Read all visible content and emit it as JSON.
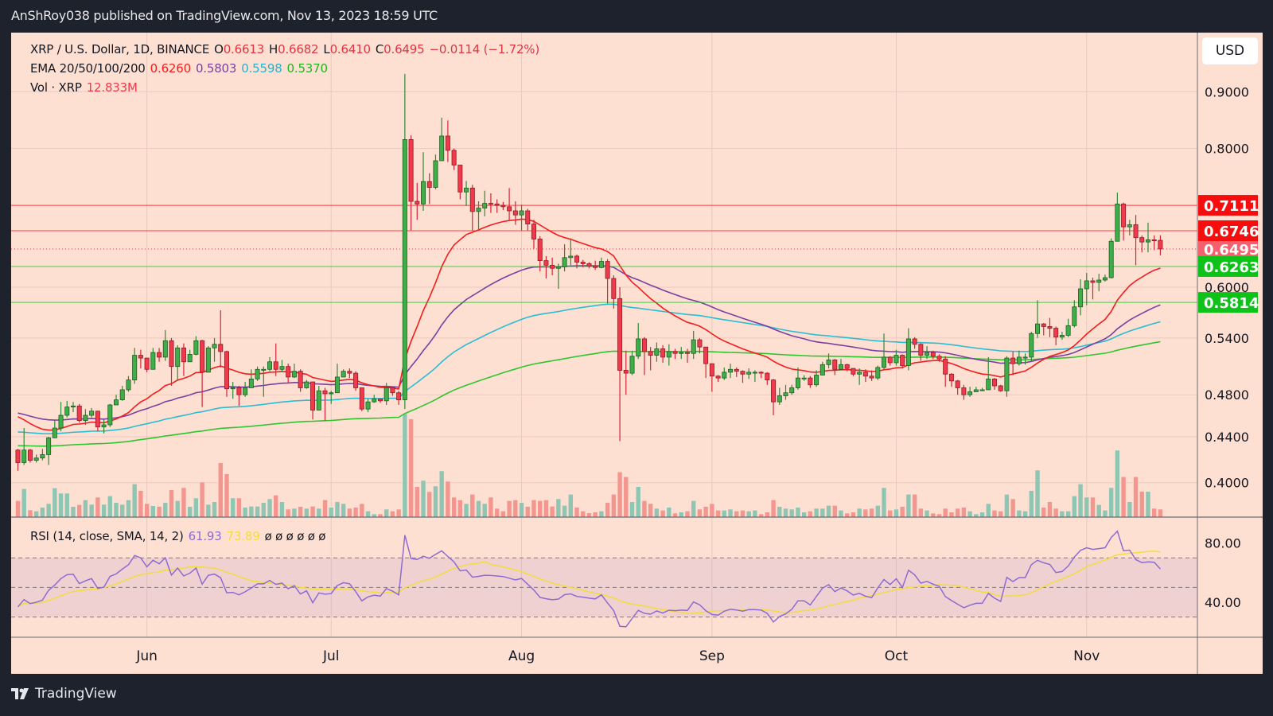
{
  "header": {
    "published": "AnShRoy038 published on TradingView.com, Nov 13, 2023 18:59 UTC"
  },
  "legend": {
    "symbol": "XRP / U.S. Dollar, 1D, BINANCE",
    "open_label": "O",
    "open": "0.6613",
    "high_label": "H",
    "high": "0.6682",
    "low_label": "L",
    "low": "0.6410",
    "close_label": "C",
    "close": "0.6495",
    "change": "−0.0114 (−1.72%)",
    "ema_title": "EMA 20/50/100/200",
    "ema_values": [
      "0.6260",
      "0.5803",
      "0.5598",
      "0.5370"
    ],
    "vol_title": "Vol · XRP",
    "vol_value": "12.833M",
    "rsi_title": "RSI (14, close, SMA, 14, 2)",
    "rsi_value": "61.93",
    "rsi_ma_value": "73.89",
    "rsi_extra": "ø ø ø ø ø ø"
  },
  "currency_button": "USD",
  "footer": {
    "brand": "TradingView"
  },
  "colors": {
    "background": "#fee0d3",
    "up": "#3fae49",
    "down": "#f0394a",
    "vol_up": "#8fc5b3",
    "vol_down": "#f3968f",
    "ema20": "#f21d1d",
    "ema50": "#7b3fa0",
    "ema100": "#2bbcd4",
    "ema200": "#2fc52f",
    "rsi": "#8e6bd0",
    "rsi_ma": "#f3dc3c"
  },
  "chart_data": {
    "type": "candlestick",
    "symbol": "XRPUSD",
    "exchange": "BINANCE",
    "interval": "1D",
    "first_date": "2023-05-11",
    "price_axis": {
      "scale": "log",
      "currency": "USD",
      "ticks": [
        "0.9000",
        "0.8000",
        "0.6000",
        "0.5400",
        "0.4800",
        "0.4400",
        "0.4000"
      ]
    },
    "time_labels": [
      {
        "label": "Jun",
        "date": "2023-06-01"
      },
      {
        "label": "Jul",
        "date": "2023-07-01"
      },
      {
        "label": "Aug",
        "date": "2023-08-01"
      },
      {
        "label": "Sep",
        "date": "2023-09-01"
      },
      {
        "label": "Oct",
        "date": "2023-10-01"
      },
      {
        "label": "Nov",
        "date": "2023-11-01"
      }
    ],
    "grid": true,
    "candles": {
      "columns": [
        "high",
        "low",
        "close",
        "volume_M"
      ],
      "first_open": 0.428,
      "rows": [
        [
          0.429,
          0.41,
          0.417,
          26.5
        ],
        [
          0.448,
          0.415,
          0.428,
          45.8
        ],
        [
          0.429,
          0.417,
          0.419,
          11.6
        ],
        [
          0.424,
          0.417,
          0.421,
          9.8
        ],
        [
          0.429,
          0.419,
          0.424,
          15.8
        ],
        [
          0.44,
          0.415,
          0.439,
          21.8
        ],
        [
          0.455,
          0.442,
          0.448,
          47.1
        ],
        [
          0.473,
          0.445,
          0.46,
          38.5
        ],
        [
          0.474,
          0.458,
          0.468,
          38.5
        ],
        [
          0.473,
          0.463,
          0.469,
          17.1
        ],
        [
          0.471,
          0.453,
          0.455,
          20.1
        ],
        [
          0.466,
          0.451,
          0.46,
          27.8
        ],
        [
          0.467,
          0.458,
          0.464,
          20.5
        ],
        [
          0.464,
          0.445,
          0.449,
          32.1
        ],
        [
          0.456,
          0.443,
          0.451,
          20.5
        ],
        [
          0.471,
          0.449,
          0.47,
          34.2
        ],
        [
          0.48,
          0.47,
          0.475,
          23.5
        ],
        [
          0.489,
          0.474,
          0.485,
          20.5
        ],
        [
          0.499,
          0.483,
          0.495,
          27.8
        ],
        [
          0.529,
          0.491,
          0.521,
          53.5
        ],
        [
          0.527,
          0.507,
          0.518,
          42.8
        ],
        [
          0.518,
          0.503,
          0.506,
          21.8
        ],
        [
          0.529,
          0.506,
          0.524,
          18.4
        ],
        [
          0.529,
          0.514,
          0.519,
          17.1
        ],
        [
          0.549,
          0.515,
          0.537,
          23.5
        ],
        [
          0.54,
          0.489,
          0.509,
          44.1
        ],
        [
          0.532,
          0.494,
          0.529,
          26.5
        ],
        [
          0.534,
          0.499,
          0.514,
          47.5
        ],
        [
          0.527,
          0.517,
          0.522,
          17.1
        ],
        [
          0.542,
          0.521,
          0.537,
          30.8
        ],
        [
          0.538,
          0.468,
          0.503,
          56.5
        ],
        [
          0.531,
          0.503,
          0.529,
          20.5
        ],
        [
          0.54,
          0.514,
          0.533,
          24.8
        ],
        [
          0.572,
          0.508,
          0.525,
          87.7
        ],
        [
          0.526,
          0.478,
          0.486,
          69.8
        ],
        [
          0.493,
          0.476,
          0.487,
          30.8
        ],
        [
          0.489,
          0.469,
          0.48,
          30.8
        ],
        [
          0.493,
          0.478,
          0.487,
          15.8
        ],
        [
          0.506,
          0.487,
          0.496,
          17.5
        ],
        [
          0.509,
          0.494,
          0.506,
          17.5
        ],
        [
          0.509,
          0.478,
          0.506,
          23.5
        ],
        [
          0.519,
          0.504,
          0.514,
          29.5
        ],
        [
          0.534,
          0.499,
          0.506,
          35.5
        ],
        [
          0.516,
          0.503,
          0.509,
          24.8
        ],
        [
          0.512,
          0.492,
          0.498,
          12.8
        ],
        [
          0.512,
          0.497,
          0.504,
          14.1
        ],
        [
          0.506,
          0.483,
          0.487,
          17.1
        ],
        [
          0.495,
          0.486,
          0.493,
          14.1
        ],
        [
          0.492,
          0.456,
          0.465,
          17.5
        ],
        [
          0.489,
          0.465,
          0.484,
          14.1
        ],
        [
          0.487,
          0.455,
          0.481,
          27.8
        ],
        [
          0.484,
          0.471,
          0.482,
          15.8
        ],
        [
          0.512,
          0.484,
          0.498,
          24.8
        ],
        [
          0.506,
          0.498,
          0.504,
          21.8
        ],
        [
          0.507,
          0.497,
          0.502,
          14.1
        ],
        [
          0.504,
          0.484,
          0.487,
          15.8
        ],
        [
          0.487,
          0.464,
          0.466,
          21.8
        ],
        [
          0.476,
          0.463,
          0.473,
          9.8
        ],
        [
          0.48,
          0.472,
          0.476,
          5.1
        ],
        [
          0.476,
          0.472,
          0.474,
          5.1
        ],
        [
          0.492,
          0.47,
          0.487,
          12.8
        ],
        [
          0.487,
          0.479,
          0.482,
          9.8
        ],
        [
          0.484,
          0.47,
          0.475,
          12.8
        ],
        [
          0.934,
          0.466,
          0.815,
          166.9
        ],
        [
          0.822,
          0.675,
          0.717,
          158.4
        ],
        [
          0.745,
          0.69,
          0.713,
          49.2
        ],
        [
          0.794,
          0.703,
          0.747,
          59.1
        ],
        [
          0.76,
          0.713,
          0.738,
          41.1
        ],
        [
          0.79,
          0.735,
          0.78,
          50.1
        ],
        [
          0.853,
          0.78,
          0.821,
          74.5
        ],
        [
          0.848,
          0.778,
          0.797,
          57.8
        ],
        [
          0.8,
          0.765,
          0.773,
          32.1
        ],
        [
          0.76,
          0.72,
          0.731,
          27.8
        ],
        [
          0.748,
          0.71,
          0.737,
          21.8
        ],
        [
          0.742,
          0.675,
          0.702,
          36.8
        ],
        [
          0.717,
          0.675,
          0.707,
          26.5
        ],
        [
          0.733,
          0.695,
          0.714,
          21.8
        ],
        [
          0.729,
          0.7,
          0.713,
          32.1
        ],
        [
          0.72,
          0.7,
          0.711,
          14.1
        ],
        [
          0.716,
          0.704,
          0.709,
          9.8
        ],
        [
          0.737,
          0.69,
          0.703,
          26.5
        ],
        [
          0.717,
          0.683,
          0.697,
          27.8
        ],
        [
          0.712,
          0.675,
          0.703,
          23.5
        ],
        [
          0.706,
          0.675,
          0.684,
          17.1
        ],
        [
          0.69,
          0.65,
          0.663,
          27.8
        ],
        [
          0.667,
          0.62,
          0.634,
          26.5
        ],
        [
          0.64,
          0.611,
          0.628,
          27.8
        ],
        [
          0.638,
          0.615,
          0.624,
          17.5
        ],
        [
          0.63,
          0.598,
          0.626,
          29.5
        ],
        [
          0.656,
          0.62,
          0.638,
          18.8
        ],
        [
          0.664,
          0.628,
          0.64,
          36.8
        ],
        [
          0.642,
          0.624,
          0.632,
          15.8
        ],
        [
          0.635,
          0.625,
          0.63,
          9.8
        ],
        [
          0.632,
          0.624,
          0.627,
          6.8
        ],
        [
          0.634,
          0.622,
          0.625,
          8.1
        ],
        [
          0.638,
          0.624,
          0.633,
          9.8
        ],
        [
          0.636,
          0.58,
          0.611,
          23.5
        ],
        [
          0.615,
          0.574,
          0.586,
          36.8
        ],
        [
          0.6,
          0.436,
          0.505,
          72.8
        ],
        [
          0.526,
          0.48,
          0.502,
          65.1
        ],
        [
          0.526,
          0.5,
          0.52,
          24.8
        ],
        [
          0.557,
          0.517,
          0.539,
          49.2
        ],
        [
          0.541,
          0.5,
          0.525,
          26.5
        ],
        [
          0.53,
          0.505,
          0.521,
          21.8
        ],
        [
          0.535,
          0.514,
          0.528,
          14.1
        ],
        [
          0.532,
          0.513,
          0.519,
          11.1
        ],
        [
          0.533,
          0.51,
          0.525,
          15.8
        ],
        [
          0.528,
          0.517,
          0.523,
          6.4
        ],
        [
          0.53,
          0.517,
          0.524,
          8.1
        ],
        [
          0.528,
          0.513,
          0.523,
          9.8
        ],
        [
          0.548,
          0.517,
          0.538,
          26.5
        ],
        [
          0.54,
          0.523,
          0.53,
          12.8
        ],
        [
          0.53,
          0.497,
          0.512,
          17.1
        ],
        [
          0.51,
          0.483,
          0.499,
          21.8
        ],
        [
          0.5,
          0.493,
          0.497,
          11.1
        ],
        [
          0.508,
          0.495,
          0.503,
          11.1
        ],
        [
          0.512,
          0.497,
          0.506,
          12.8
        ],
        [
          0.508,
          0.498,
          0.504,
          9.8
        ],
        [
          0.505,
          0.492,
          0.501,
          11.1
        ],
        [
          0.507,
          0.496,
          0.503,
          9.8
        ],
        [
          0.505,
          0.493,
          0.503,
          11.1
        ],
        [
          0.504,
          0.497,
          0.502,
          5.1
        ],
        [
          0.503,
          0.49,
          0.495,
          8.1
        ],
        [
          0.496,
          0.46,
          0.473,
          27.8
        ],
        [
          0.487,
          0.47,
          0.479,
          17.1
        ],
        [
          0.49,
          0.475,
          0.482,
          14.1
        ],
        [
          0.49,
          0.48,
          0.487,
          12.8
        ],
        [
          0.508,
          0.485,
          0.497,
          15.8
        ],
        [
          0.5,
          0.494,
          0.497,
          8.1
        ],
        [
          0.499,
          0.487,
          0.49,
          9.8
        ],
        [
          0.505,
          0.488,
          0.5,
          14.1
        ],
        [
          0.514,
          0.5,
          0.511,
          14.1
        ],
        [
          0.523,
          0.507,
          0.516,
          18.8
        ],
        [
          0.517,
          0.5,
          0.506,
          18.8
        ],
        [
          0.517,
          0.505,
          0.511,
          11.1
        ],
        [
          0.512,
          0.504,
          0.507,
          6.4
        ],
        [
          0.507,
          0.499,
          0.501,
          8.1
        ],
        [
          0.507,
          0.49,
          0.503,
          14.1
        ],
        [
          0.506,
          0.493,
          0.499,
          12.8
        ],
        [
          0.505,
          0.494,
          0.497,
          14.1
        ],
        [
          0.51,
          0.495,
          0.508,
          18.8
        ],
        [
          0.545,
          0.506,
          0.519,
          47.5
        ],
        [
          0.52,
          0.51,
          0.513,
          11.1
        ],
        [
          0.527,
          0.51,
          0.521,
          12.8
        ],
        [
          0.522,
          0.507,
          0.51,
          17.1
        ],
        [
          0.551,
          0.505,
          0.539,
          36.8
        ],
        [
          0.541,
          0.528,
          0.533,
          36.8
        ],
        [
          0.534,
          0.515,
          0.521,
          14.1
        ],
        [
          0.531,
          0.517,
          0.524,
          11.1
        ],
        [
          0.526,
          0.517,
          0.52,
          6.4
        ],
        [
          0.522,
          0.514,
          0.517,
          5.1
        ],
        [
          0.52,
          0.488,
          0.501,
          14.1
        ],
        [
          0.502,
          0.488,
          0.494,
          8.1
        ],
        [
          0.495,
          0.48,
          0.487,
          14.1
        ],
        [
          0.49,
          0.475,
          0.48,
          15.8
        ],
        [
          0.488,
          0.478,
          0.483,
          9.8
        ],
        [
          0.488,
          0.483,
          0.485,
          5.1
        ],
        [
          0.487,
          0.484,
          0.485,
          8.1
        ],
        [
          0.519,
          0.485,
          0.496,
          21.8
        ],
        [
          0.497,
          0.485,
          0.489,
          11.1
        ],
        [
          0.49,
          0.483,
          0.484,
          9.8
        ],
        [
          0.52,
          0.478,
          0.518,
          36.8
        ],
        [
          0.525,
          0.5,
          0.512,
          29.5
        ],
        [
          0.526,
          0.51,
          0.519,
          11.1
        ],
        [
          0.523,
          0.511,
          0.519,
          9.8
        ],
        [
          0.547,
          0.515,
          0.545,
          42.8
        ],
        [
          0.584,
          0.54,
          0.556,
          75.8
        ],
        [
          0.557,
          0.543,
          0.553,
          15.8
        ],
        [
          0.563,
          0.541,
          0.551,
          24.8
        ],
        [
          0.553,
          0.532,
          0.541,
          14.1
        ],
        [
          0.547,
          0.538,
          0.543,
          9.8
        ],
        [
          0.562,
          0.541,
          0.554,
          9.8
        ],
        [
          0.584,
          0.552,
          0.576,
          34.2
        ],
        [
          0.61,
          0.566,
          0.598,
          53.5
        ],
        [
          0.618,
          0.578,
          0.608,
          32.1
        ],
        [
          0.612,
          0.585,
          0.606,
          32.1
        ],
        [
          0.617,
          0.595,
          0.609,
          20.1
        ],
        [
          0.616,
          0.607,
          0.612,
          11.1
        ],
        [
          0.664,
          0.611,
          0.66,
          47.5
        ],
        [
          0.73,
          0.66,
          0.713,
          107.9
        ],
        [
          0.715,
          0.661,
          0.68,
          65.1
        ],
        [
          0.69,
          0.668,
          0.683,
          24.8
        ],
        [
          0.697,
          0.628,
          0.665,
          65.1
        ],
        [
          0.668,
          0.645,
          0.659,
          41.5
        ],
        [
          0.686,
          0.645,
          0.662,
          41.5
        ],
        [
          0.668,
          0.648,
          0.6613,
          14.1
        ],
        [
          0.6682,
          0.641,
          0.6495,
          12.833
        ]
      ]
    },
    "ema_periods": [
      20,
      50,
      100,
      200
    ],
    "horizontal_levels": [
      {
        "price": 0.7111,
        "label": "0.7111",
        "color": "#f70d0d"
      },
      {
        "price": 0.6746,
        "label": "0.6746",
        "color": "#f70d0d"
      },
      {
        "price": 0.6263,
        "label": "0.6263",
        "color": "#0ec21a"
      },
      {
        "price": 0.5814,
        "label": "0.5814",
        "color": "#0ec21a"
      }
    ],
    "last_price": {
      "price": 0.6495,
      "label": "0.6495",
      "color": "#f4606d"
    },
    "rsi": {
      "length": 14,
      "ma_length": 14,
      "axis_ticks": [
        "80.00",
        "40.00"
      ],
      "levels": [
        70,
        50,
        30
      ]
    }
  }
}
